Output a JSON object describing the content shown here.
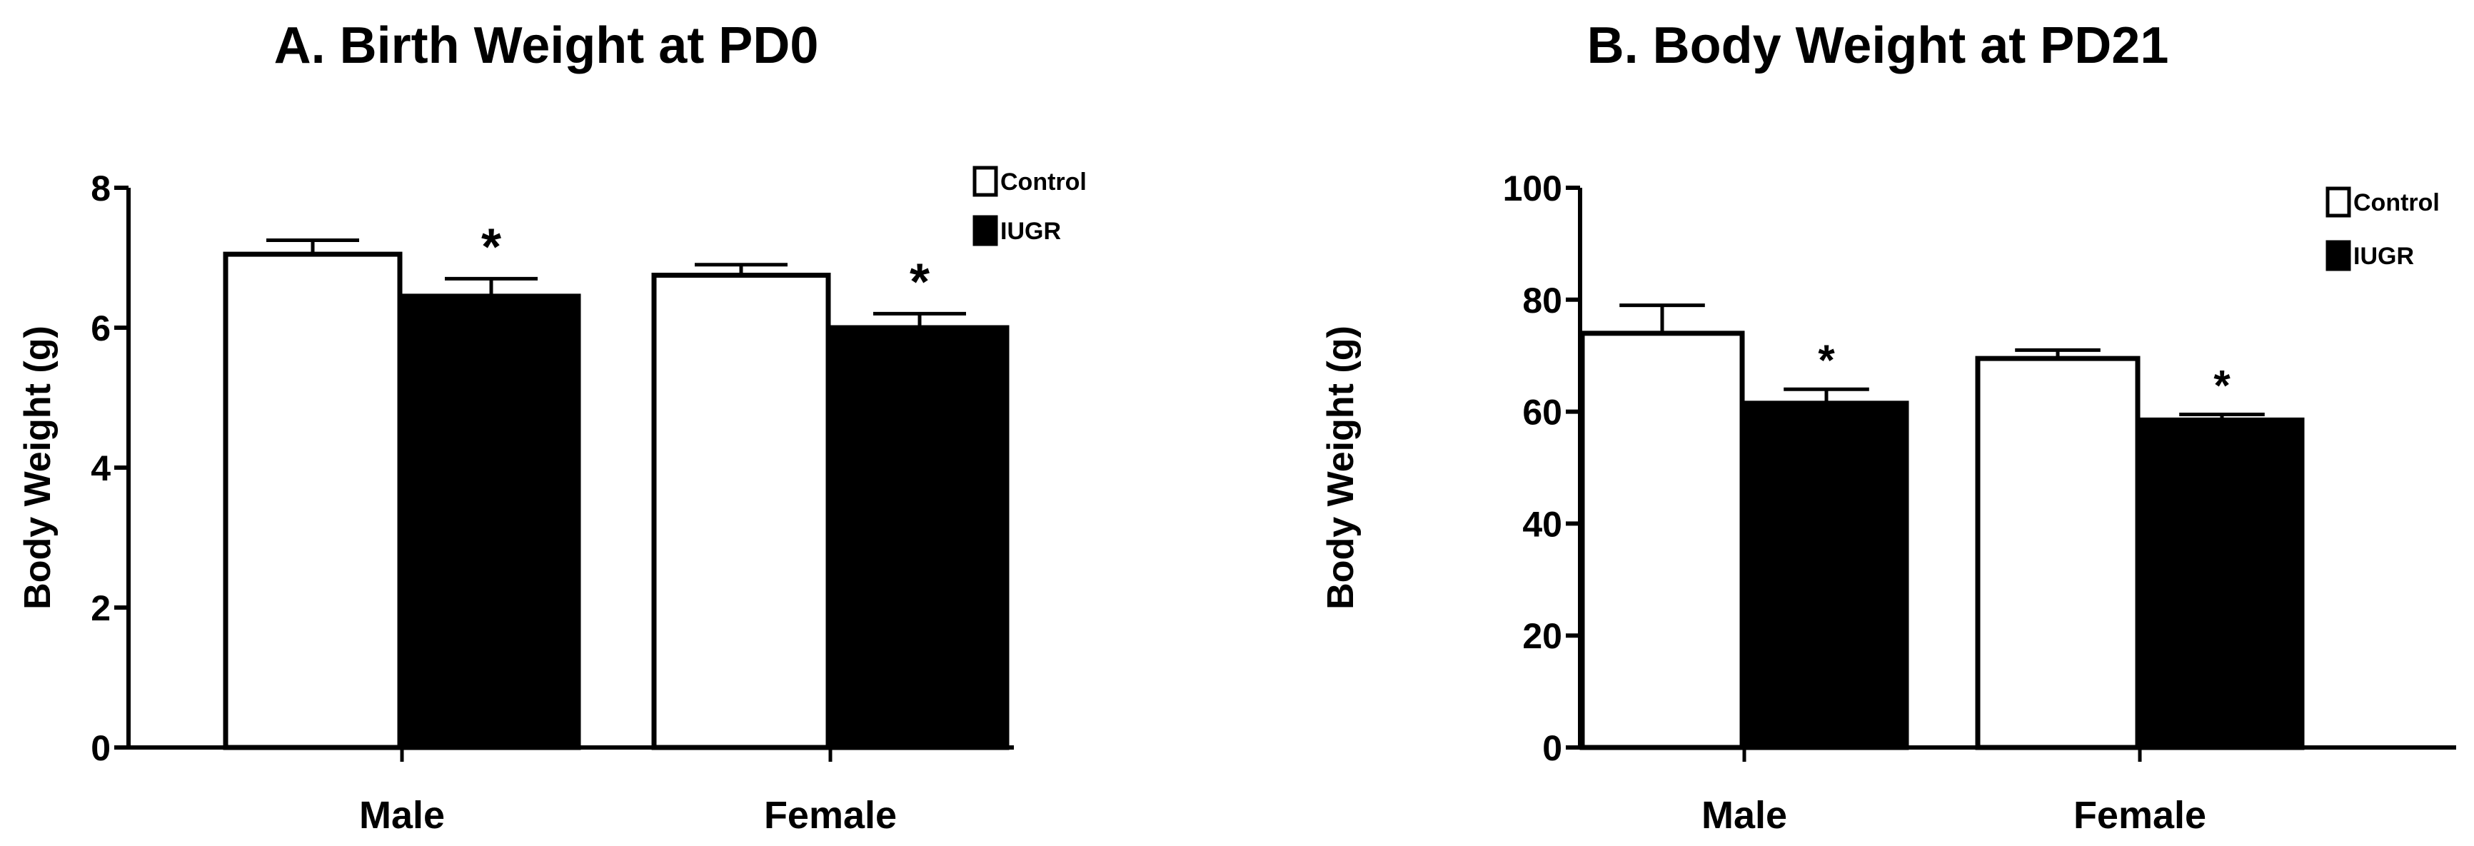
{
  "chart_data": [
    {
      "type": "bar",
      "title": "A. Birth Weight at PD0",
      "xlabel": "",
      "ylabel": "Body Weight (g)",
      "ylim": [
        0,
        8
      ],
      "yticks": [
        0,
        2,
        4,
        6,
        8
      ],
      "categories": [
        "Male",
        "Female"
      ],
      "series": [
        {
          "name": "Control",
          "fill": "#ffffff",
          "values": [
            7.05,
            6.75
          ],
          "errors": [
            0.2,
            0.15
          ]
        },
        {
          "name": "IUGR",
          "fill": "#000000",
          "values": [
            6.45,
            6.0
          ],
          "errors": [
            0.25,
            0.2
          ]
        }
      ],
      "annotations": [
        {
          "category": "Male",
          "series": "IUGR",
          "text": "*"
        },
        {
          "category": "Female",
          "series": "IUGR",
          "text": "*"
        }
      ],
      "legend_position": "top-right"
    },
    {
      "type": "bar",
      "title": "B. Body Weight at PD21",
      "xlabel": "",
      "ylabel": "Body Weight (g)",
      "ylim": [
        0,
        100
      ],
      "yticks": [
        0,
        20,
        40,
        60,
        80,
        100
      ],
      "categories": [
        "Male",
        "Female"
      ],
      "series": [
        {
          "name": "Control",
          "fill": "#ffffff",
          "values": [
            74,
            69.5
          ],
          "errors": [
            5,
            1.5
          ]
        },
        {
          "name": "IUGR",
          "fill": "#000000",
          "values": [
            61.5,
            58.5
          ],
          "errors": [
            2.5,
            1
          ]
        }
      ],
      "annotations": [
        {
          "category": "Male",
          "series": "IUGR",
          "text": "*"
        },
        {
          "category": "Female",
          "series": "IUGR",
          "text": "*"
        }
      ],
      "legend_position": "top-right"
    }
  ]
}
